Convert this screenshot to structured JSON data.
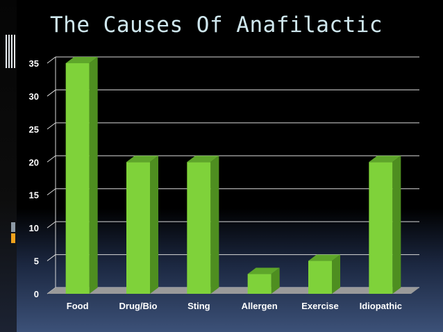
{
  "slide": {
    "title": "The Causes Of Anafilactic"
  },
  "colors": {
    "bar_front": "#7fd23a",
    "bar_side": "#4e8e20",
    "bar_top": "#5ea62a",
    "grid": "#d9d9d9",
    "floor": "#9a9a9a",
    "accent_gray": "#8e9aa6",
    "accent_orange": "#f0a21c"
  },
  "chart_data": {
    "type": "bar",
    "categories": [
      "Food",
      "Drug/Bio",
      "Sting",
      "Allergen",
      "Exercise",
      "Idiopathic"
    ],
    "values": [
      35,
      20,
      20,
      3,
      5,
      20
    ],
    "ylim": [
      0,
      35
    ],
    "yticks": [
      0,
      5,
      10,
      15,
      20,
      25,
      30,
      35
    ],
    "grid": true
  }
}
